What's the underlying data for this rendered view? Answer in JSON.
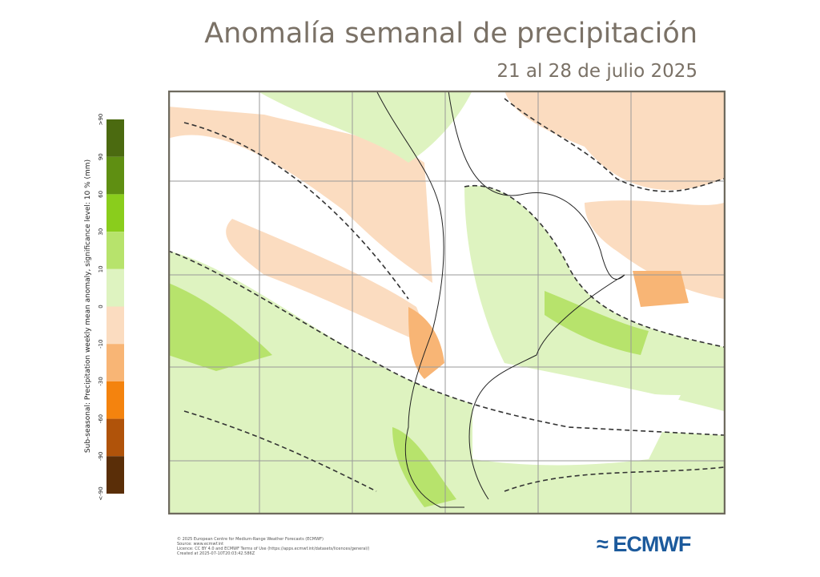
{
  "header": {
    "title": "Anomalía semanal de precipitación",
    "subtitle": "21 al 28 de julio 2025"
  },
  "legend": {
    "axis_label": "Sub-seasonal: Precipitation weekly mean anomaly, significance level: 10 % (mm)",
    "labels": [
      ">90",
      "90",
      "60",
      "30",
      "10",
      "0",
      "-10",
      "-30",
      "-60",
      "-90",
      "<-90"
    ],
    "colors": [
      "#4b6a10",
      "#5f8f12",
      "#8acd1c",
      "#b7e36c",
      "#def3c0",
      "#fbdcc0",
      "#f8b575",
      "#f4830e",
      "#b0530a",
      "#5a2e08"
    ]
  },
  "footer": {
    "lines": [
      "© 2025 European Centre for Medium-Range Weather Forecasts (ECMWF)",
      "Source: www.ecmwf.int",
      "Licence: CC BY 4.0 and ECMWF Terms of Use (https://apps.ecmwf.int/datasets/licences/general/)",
      "Created at 2025-07-10T20:03:42.586Z"
    ],
    "logo": "ECMWF"
  }
}
